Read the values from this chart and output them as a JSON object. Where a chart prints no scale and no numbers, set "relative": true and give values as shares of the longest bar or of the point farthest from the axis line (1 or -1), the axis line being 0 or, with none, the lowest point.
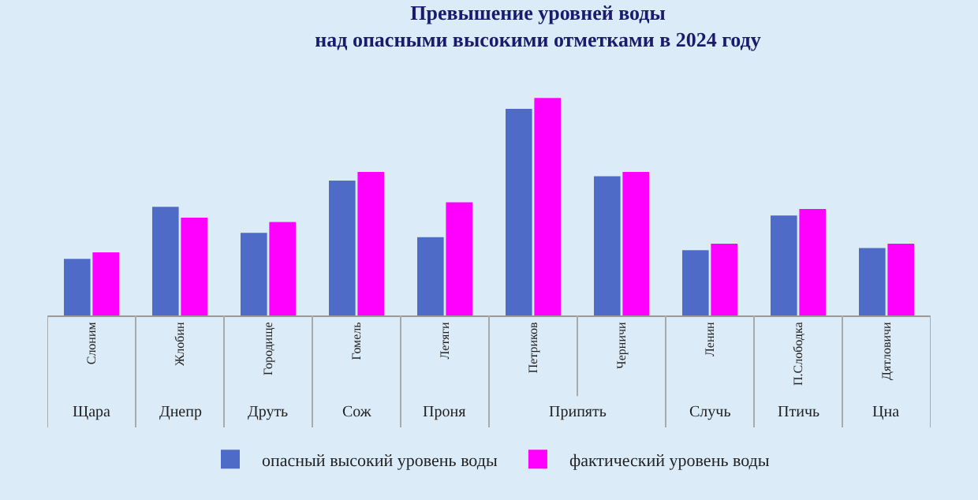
{
  "chart_data": {
    "type": "bar",
    "title": "Превышение уровней воды\nнад опасными высокими отметками в 2024 году",
    "relative": true,
    "grid": false,
    "legend": "bottom",
    "categories": [
      "Слоним",
      "Жлобин",
      "Городище",
      "Гомель",
      "Летяги",
      "Петриков",
      "Черничи",
      "Ленин",
      "П.Слободка",
      "Дятловичи"
    ],
    "series": [
      {
        "name": "опасный высокий уровень воды",
        "color": "#4f6bc8",
        "values": [
          0.26,
          0.5,
          0.38,
          0.62,
          0.36,
          0.95,
          0.64,
          0.3,
          0.46,
          0.31
        ]
      },
      {
        "name": "фактический уровень воды",
        "color": "#ff00ff",
        "values": [
          0.29,
          0.45,
          0.43,
          0.66,
          0.52,
          1,
          0.66,
          0.33,
          0.49,
          0.33
        ]
      }
    ],
    "annotations": [
      "Щара",
      "Днепр",
      "Друть",
      "Сож",
      "Проня",
      "Припять",
      "Случь",
      "Птичь",
      "Цна"
    ]
  }
}
